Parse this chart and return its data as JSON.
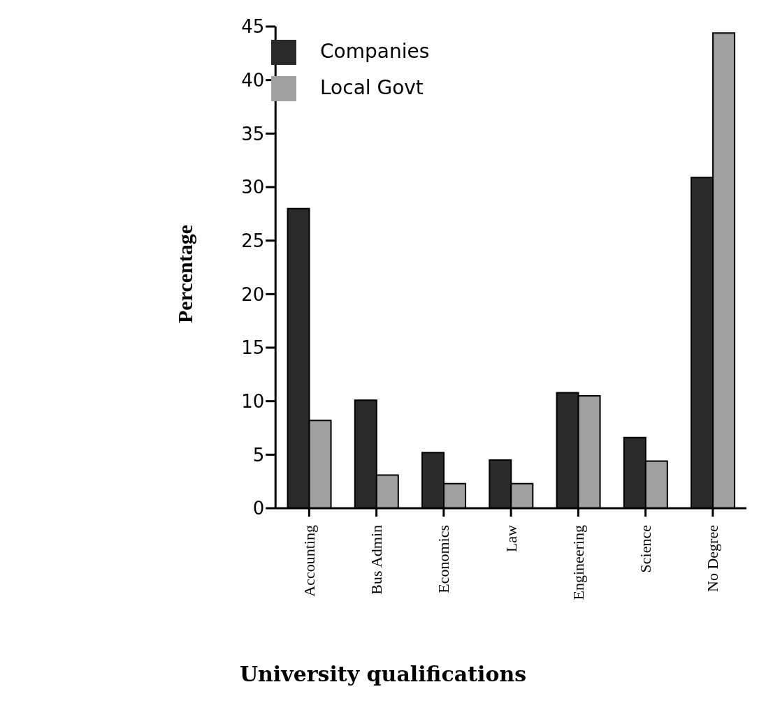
{
  "chart_data": {
    "type": "bar",
    "xlabel": "University qualifications",
    "ylabel": "Percentage",
    "categories": [
      "Accounting",
      "Bus Admin",
      "Economics",
      "Law",
      "Engineering",
      "Science",
      "No Degree"
    ],
    "series": [
      {
        "name": "Companies",
        "color": "#2a2a2a",
        "values": [
          28,
          10.1,
          5.2,
          4.5,
          10.8,
          6.6,
          30.9
        ]
      },
      {
        "name": "Local Govt",
        "color": "#a0a0a0",
        "values": [
          8.2,
          3.1,
          2.3,
          2.3,
          10.5,
          4.4,
          44.4
        ]
      }
    ],
    "ylim": [
      0,
      45
    ],
    "yticks": [
      0,
      5,
      10,
      15,
      20,
      25,
      30,
      35,
      40,
      45
    ],
    "grid": false,
    "legend": "top left"
  }
}
